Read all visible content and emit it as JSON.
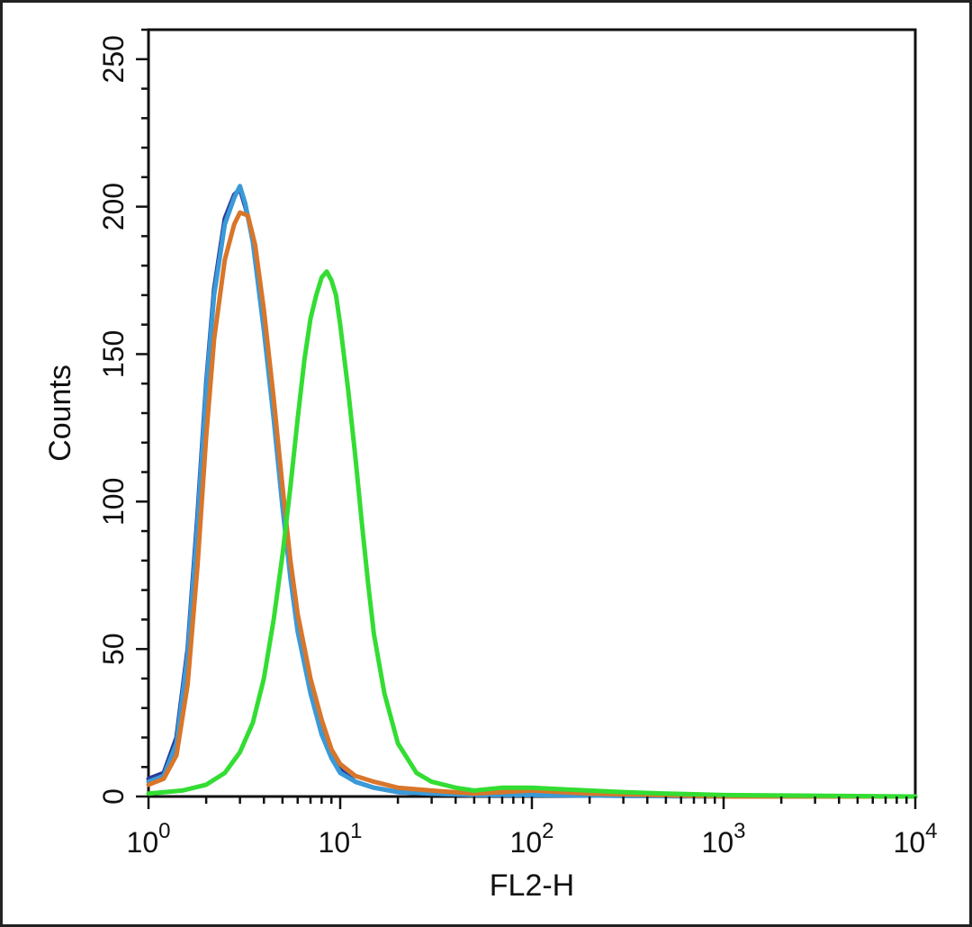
{
  "chart_data": {
    "type": "line",
    "xlabel": "FL2-H",
    "ylabel": "Counts",
    "xscale": "log",
    "xlim": [
      1,
      10000
    ],
    "ylim": [
      0,
      260
    ],
    "grid": false,
    "legend": "none",
    "x_ticks": [
      {
        "value": 1,
        "base": "10",
        "exp": "0"
      },
      {
        "value": 10,
        "base": "10",
        "exp": "1"
      },
      {
        "value": 100,
        "base": "10",
        "exp": "2"
      },
      {
        "value": 1000,
        "base": "10",
        "exp": "3"
      },
      {
        "value": 10000,
        "base": "10",
        "exp": "4"
      }
    ],
    "y_ticks": [
      0,
      50,
      100,
      150,
      200,
      250
    ],
    "series": [
      {
        "color": "#2a3a9a",
        "x": [
          1,
          1.2,
          1.4,
          1.6,
          1.8,
          2,
          2.2,
          2.5,
          2.8,
          3.0,
          3.2,
          3.5,
          4,
          4.5,
          5,
          5.5,
          6,
          7,
          8,
          9,
          10,
          12,
          15,
          20,
          30,
          50,
          100,
          1000,
          10000
        ],
        "y": [
          6,
          8,
          20,
          50,
          95,
          140,
          172,
          196,
          204,
          206,
          200,
          190,
          160,
          130,
          100,
          75,
          58,
          36,
          22,
          14,
          9,
          5,
          3,
          1.5,
          1,
          0.5,
          0.5,
          0,
          0
        ]
      },
      {
        "color": "#3a9ad8",
        "x": [
          1,
          1.2,
          1.4,
          1.6,
          1.8,
          2,
          2.2,
          2.5,
          2.8,
          3.0,
          3.2,
          3.5,
          4,
          4.5,
          5,
          5.5,
          6,
          7,
          8,
          9,
          10,
          12,
          15,
          20,
          30,
          50,
          100,
          1000,
          10000
        ],
        "y": [
          5,
          7,
          18,
          48,
          92,
          138,
          170,
          194,
          203,
          207,
          201,
          188,
          158,
          128,
          98,
          74,
          56,
          35,
          21,
          13,
          8,
          5,
          3,
          1.5,
          1,
          0.5,
          0.5,
          0,
          0
        ]
      },
      {
        "color": "#d8762a",
        "x": [
          1,
          1.2,
          1.4,
          1.6,
          1.8,
          2,
          2.2,
          2.5,
          2.8,
          3.0,
          3.3,
          3.6,
          4,
          4.5,
          5,
          5.5,
          6,
          7,
          8,
          9,
          10,
          12,
          15,
          20,
          30,
          50,
          100,
          200,
          1000,
          10000
        ],
        "y": [
          4,
          6,
          14,
          38,
          78,
          122,
          155,
          182,
          194,
          198,
          197,
          187,
          165,
          135,
          105,
          80,
          62,
          40,
          26,
          16,
          11,
          7,
          5,
          3,
          2,
          1,
          2,
          1,
          0,
          0
        ]
      },
      {
        "color": "#33dd33",
        "x": [
          1,
          1.5,
          2,
          2.5,
          3,
          3.5,
          4,
          4.5,
          5,
          5.5,
          6,
          6.5,
          7,
          7.5,
          8,
          8.5,
          9,
          9.5,
          10,
          11,
          12,
          13,
          14,
          15,
          17,
          20,
          25,
          30,
          40,
          50,
          70,
          100,
          200,
          300,
          500,
          1000,
          10000
        ],
        "y": [
          1,
          2,
          4,
          8,
          15,
          25,
          40,
          60,
          82,
          105,
          128,
          148,
          162,
          170,
          176,
          178,
          175,
          170,
          160,
          138,
          115,
          92,
          72,
          55,
          35,
          18,
          8,
          5,
          3,
          2,
          3,
          3,
          2,
          1.5,
          1,
          0.5,
          0
        ]
      }
    ]
  }
}
